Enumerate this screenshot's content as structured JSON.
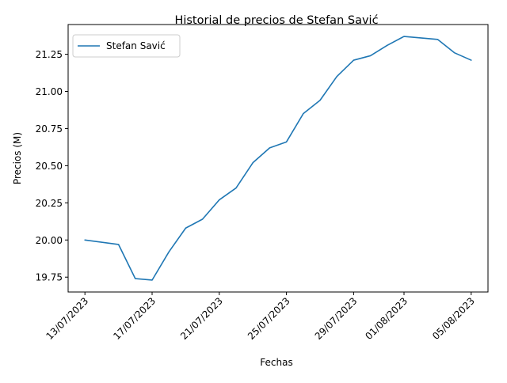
{
  "chart_data": {
    "type": "line",
    "title": "Historial de precios de Stefan Savić",
    "xlabel": "Fechas",
    "ylabel": "Precios (M)",
    "x_tick_labels": [
      "13/07/2023",
      "17/07/2023",
      "21/07/2023",
      "25/07/2023",
      "29/07/2023",
      "01/08/2023",
      "05/08/2023"
    ],
    "x_tick_dates": [
      "2023-07-13",
      "2023-07-17",
      "2023-07-21",
      "2023-07-25",
      "2023-07-29",
      "2023-08-01",
      "2023-08-05"
    ],
    "y_ticks": [
      "19.75",
      "20.00",
      "20.25",
      "20.50",
      "20.75",
      "21.00",
      "21.25"
    ],
    "ylim": [
      19.65,
      21.45
    ],
    "xlim": [
      "2023-07-12",
      "2023-08-06"
    ],
    "grid": false,
    "legend_position": "upper left",
    "series": [
      {
        "name": "Stefan Savić",
        "color": "#1f77b4",
        "x": [
          "2023-07-13",
          "2023-07-15",
          "2023-07-16",
          "2023-07-17",
          "2023-07-18",
          "2023-07-19",
          "2023-07-20",
          "2023-07-21",
          "2023-07-22",
          "2023-07-23",
          "2023-07-24",
          "2023-07-25",
          "2023-07-26",
          "2023-07-27",
          "2023-07-28",
          "2023-07-29",
          "2023-07-30",
          "2023-07-31",
          "2023-08-01",
          "2023-08-02",
          "2023-08-03",
          "2023-08-04",
          "2023-08-05"
        ],
        "y": [
          20.0,
          19.97,
          19.74,
          19.73,
          19.92,
          20.08,
          20.14,
          20.27,
          20.35,
          20.52,
          20.62,
          20.66,
          20.85,
          20.94,
          21.1,
          21.21,
          21.24,
          21.31,
          21.37,
          21.36,
          21.35,
          21.26,
          21.21
        ]
      }
    ]
  }
}
